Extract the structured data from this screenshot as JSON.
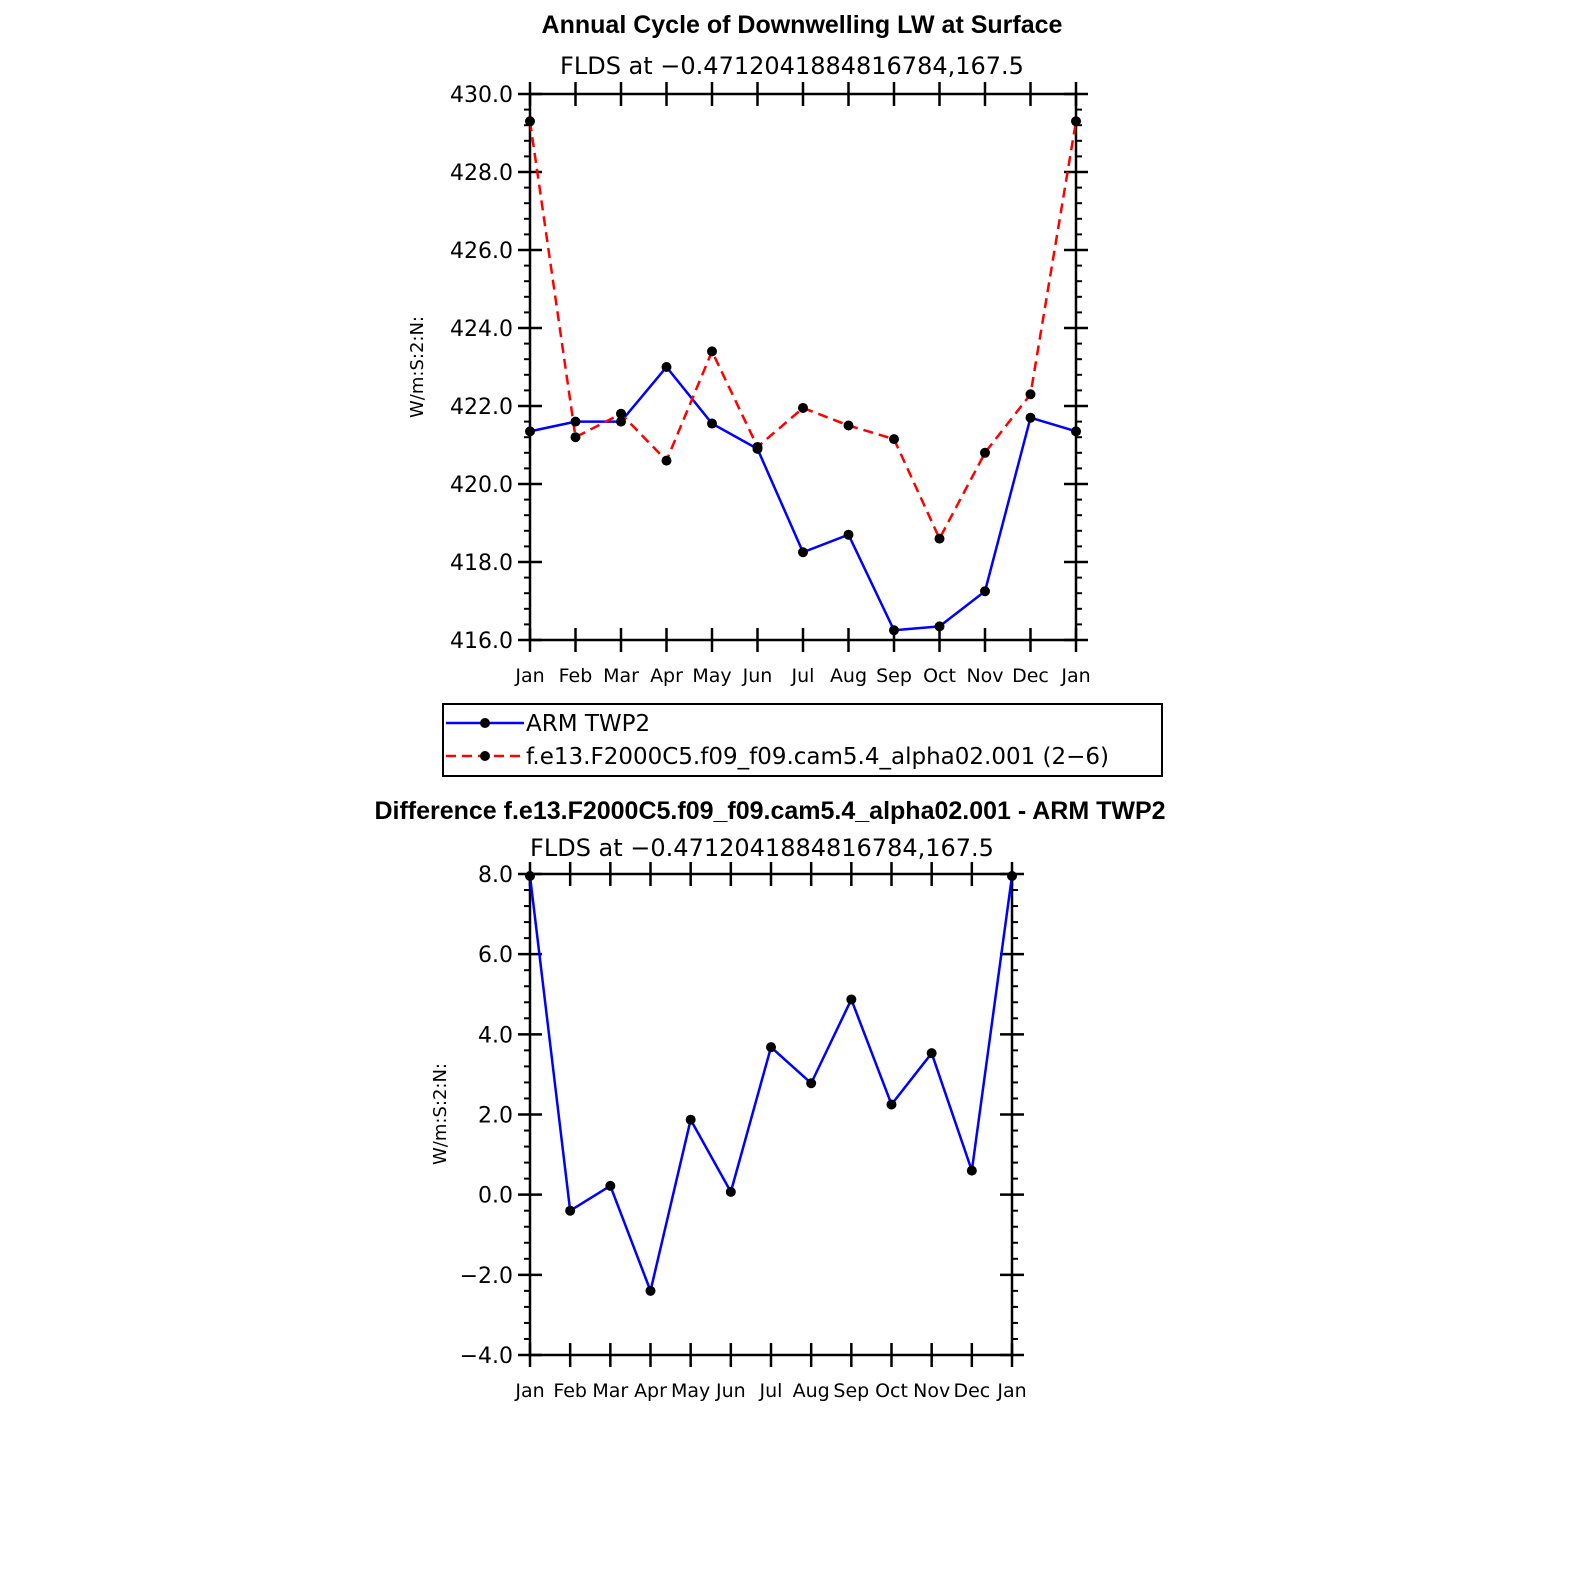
{
  "chart_data": [
    {
      "type": "line",
      "title": "Annual Cycle of Downwelling LW at Surface",
      "subtitle": "FLDS at −0.4712041884816784,167.5",
      "ylabel": "W/m:S:2:N:",
      "xlabel": "",
      "categories": [
        "Jan",
        "Feb",
        "Mar",
        "Apr",
        "May",
        "Jun",
        "Jul",
        "Aug",
        "Sep",
        "Oct",
        "Nov",
        "Dec",
        "Jan"
      ],
      "ylim": [
        416.0,
        430.0
      ],
      "yticks": [
        "416.0",
        "418.0",
        "420.0",
        "422.0",
        "424.0",
        "426.0",
        "428.0",
        "430.0"
      ],
      "series": [
        {
          "name": "ARM TWP2",
          "color": "#0000ff",
          "dash": "solid",
          "values": [
            421.35,
            421.6,
            421.6,
            423.0,
            421.55,
            420.9,
            418.25,
            418.7,
            416.25,
            416.35,
            417.25,
            421.7,
            421.35
          ]
        },
        {
          "name": "f.e13.F2000C5.f09_f09.cam5.4_alpha02.001 (2−6)",
          "color": "#ff0000",
          "dash": "dashed",
          "values": [
            429.3,
            421.2,
            421.8,
            420.6,
            423.4,
            420.95,
            421.95,
            421.5,
            421.15,
            418.6,
            420.8,
            422.3,
            429.3
          ]
        }
      ],
      "legend": "below"
    },
    {
      "type": "line",
      "title": "Difference f.e13.F2000C5.f09_f09.cam5.4_alpha02.001 - ARM TWP2",
      "subtitle": "FLDS at −0.4712041884816784,167.5",
      "ylabel": "W/m:S:2:N:",
      "xlabel": "",
      "categories": [
        "Jan",
        "Feb",
        "Mar",
        "Apr",
        "May",
        "Jun",
        "Jul",
        "Aug",
        "Sep",
        "Oct",
        "Nov",
        "Dec",
        "Jan"
      ],
      "ylim": [
        -4.0,
        8.0
      ],
      "yticks": [
        "−4.0",
        "−2.0",
        "0.0",
        "2.0",
        "4.0",
        "6.0",
        "8.0"
      ],
      "series": [
        {
          "color": "#0000ff",
          "dash": "solid",
          "values": [
            7.95,
            -0.4,
            0.22,
            -2.4,
            1.87,
            0.07,
            3.68,
            2.78,
            4.87,
            2.25,
            3.53,
            0.6,
            7.95
          ]
        }
      ]
    }
  ]
}
